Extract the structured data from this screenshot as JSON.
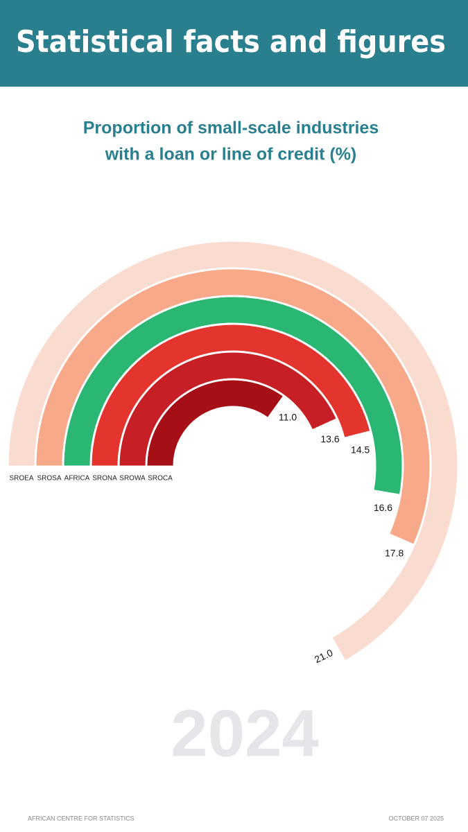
{
  "header": "Statistical facts and figures",
  "chart_data": {
    "type": "radial-bar",
    "title": [
      "Proportion of small-scale industries",
      "with a loan or line of credit (%)"
    ],
    "categories": [
      "SROEA",
      "SROSA",
      "AFRICA",
      "SRONA",
      "SROWA",
      "SROCA"
    ],
    "values": [
      21.0,
      17.8,
      16.6,
      14.5,
      13.6,
      11.0
    ],
    "value_labels": [
      "21.0",
      "17.8",
      "16.6",
      "14.5",
      "13.6",
      "11.0"
    ],
    "colors": [
      "#fadbd0",
      "#f8a98a",
      "#2ab673",
      "#e3352d",
      "#c62026",
      "#a50f15"
    ],
    "ylim": [
      0,
      31.5
    ]
  },
  "year": "2024",
  "footer": {
    "left": "AFRICAN CENTRE FOR STATISTICS",
    "right": "OCTOBER 07 2025"
  }
}
